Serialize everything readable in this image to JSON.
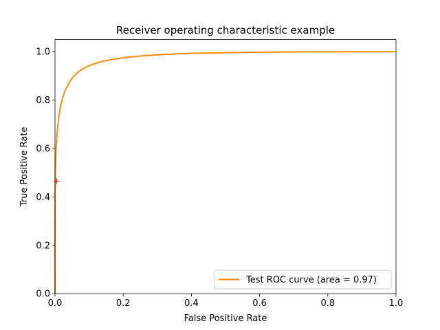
{
  "chart_data": {
    "type": "line",
    "title": "Receiver operating characteristic example",
    "xlabel": "False Positive Rate",
    "ylabel": "True Positive Rate",
    "xlim": [
      0.0,
      1.0
    ],
    "ylim": [
      0.0,
      1.05
    ],
    "xticks": [
      "0.0",
      "0.2",
      "0.4",
      "0.6",
      "0.8",
      "1.0"
    ],
    "yticks": [
      "0.0",
      "0.2",
      "0.4",
      "0.6",
      "0.8",
      "1.0"
    ],
    "grid": false,
    "legend_position": "lower-right",
    "series": [
      {
        "name": "Test ROC curve (area = 0.97)",
        "color": "#ff8c00",
        "x": [
          0.0,
          0.0,
          0.0005,
          0.001,
          0.002,
          0.003,
          0.005,
          0.008,
          0.012,
          0.018,
          0.025,
          0.035,
          0.05,
          0.07,
          0.1,
          0.14,
          0.2,
          0.3,
          0.4,
          0.5,
          0.6,
          0.7,
          0.8,
          0.9,
          1.0
        ],
        "y": [
          0.0,
          0.3,
          0.45,
          0.5,
          0.55,
          0.59,
          0.64,
          0.69,
          0.74,
          0.785,
          0.82,
          0.855,
          0.89,
          0.918,
          0.942,
          0.96,
          0.975,
          0.987,
          0.993,
          0.996,
          0.998,
          0.999,
          0.9995,
          1.0,
          1.0
        ]
      }
    ],
    "marker": {
      "x": 0.005,
      "y": 0.465,
      "color": "#ff0000",
      "symbol": "+"
    }
  }
}
